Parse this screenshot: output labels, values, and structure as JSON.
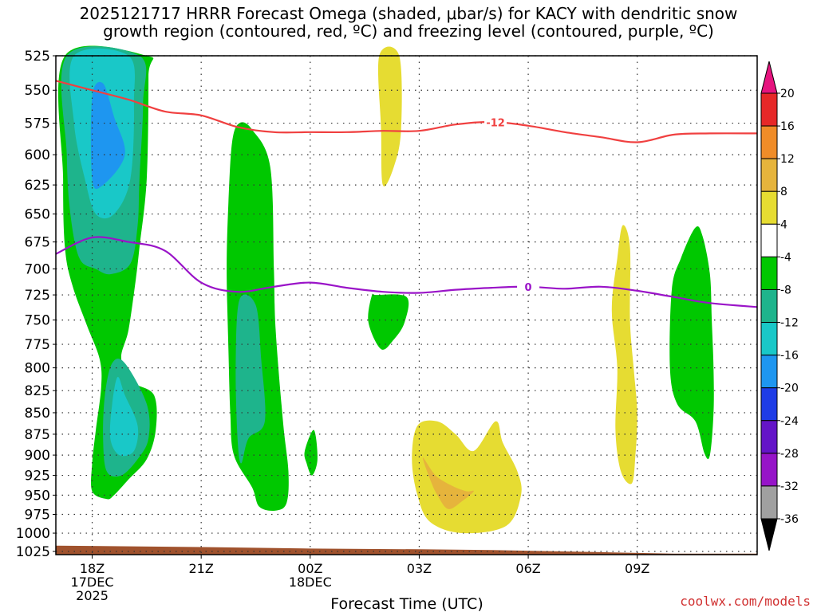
{
  "title_line1": "2025121717 HRRR Forecast Omega (shaded, μbar/s) for KACY with dendritic snow",
  "title_line2": "growth region (contoured, red, ºC) and freezing level (contoured, purple, ºC)",
  "credit": "coolwx.com/models",
  "chart_data": {
    "type": "contour",
    "xlabel": "Forecast Time (UTC)",
    "x_range_hours": [
      -1,
      18.3
    ],
    "y_levels_mb": [
      525,
      550,
      575,
      600,
      625,
      650,
      675,
      700,
      725,
      750,
      775,
      800,
      825,
      850,
      875,
      900,
      925,
      950,
      975,
      1000,
      1025
    ],
    "x_ticks": [
      {
        "hour": 0,
        "lines": [
          "18Z",
          "17DEC",
          "2025"
        ]
      },
      {
        "hour": 3,
        "lines": [
          "21Z"
        ]
      },
      {
        "hour": 6,
        "lines": [
          "00Z",
          "18DEC"
        ]
      },
      {
        "hour": 9,
        "lines": [
          "03Z"
        ]
      },
      {
        "hour": 12,
        "lines": [
          "06Z"
        ]
      },
      {
        "hour": 15,
        "lines": [
          "09Z"
        ]
      }
    ],
    "colorbar": {
      "labels": [
        "20",
        "16",
        "12",
        "8",
        "4",
        "-4",
        "-8",
        "-12",
        "-16",
        "-20",
        "-24",
        "-28",
        "-32",
        "-36"
      ],
      "bins": [
        {
          "color": "#e62828"
        },
        {
          "color": "#f08c28"
        },
        {
          "color": "#e6b43c"
        },
        {
          "color": "#e6dc32"
        },
        {
          "color": "#ffffff"
        },
        {
          "color": "#00c800"
        },
        {
          "color": "#1eb48c"
        },
        {
          "color": "#19c8c8"
        },
        {
          "color": "#1e96f0"
        },
        {
          "color": "#1e3ce6"
        },
        {
          "color": "#6414c8"
        },
        {
          "color": "#9614c8"
        },
        {
          "color": "#a0a0a0"
        }
      ],
      "top_arrow_color": "#e6147f",
      "bottom_arrow_color": "#000000"
    },
    "ground_color": "#a0522d",
    "isotherms": [
      {
        "name": "dendritic -12C",
        "label": "-12",
        "label_hour": 11.1,
        "color": "#f04040",
        "points": [
          [
            -1,
            543
          ],
          [
            0,
            550
          ],
          [
            1,
            557
          ],
          [
            2,
            566
          ],
          [
            3,
            569
          ],
          [
            4,
            578
          ],
          [
            5,
            582
          ],
          [
            6,
            582
          ],
          [
            7,
            582
          ],
          [
            8,
            581
          ],
          [
            9,
            581
          ],
          [
            10,
            576
          ],
          [
            11,
            574
          ],
          [
            12,
            577
          ],
          [
            13,
            582
          ],
          [
            14,
            586
          ],
          [
            15,
            590
          ],
          [
            16,
            584
          ],
          [
            17,
            583
          ],
          [
            18.3,
            583
          ]
        ]
      },
      {
        "name": "freezing level 0C",
        "label": "0",
        "label_hour": 12,
        "color": "#9a14c8",
        "points": [
          [
            -1,
            686
          ],
          [
            0,
            671
          ],
          [
            1,
            675
          ],
          [
            2,
            683
          ],
          [
            3,
            713
          ],
          [
            4,
            722
          ],
          [
            5,
            717
          ],
          [
            6,
            713
          ],
          [
            7,
            718
          ],
          [
            8,
            722
          ],
          [
            9,
            723
          ],
          [
            10,
            720
          ],
          [
            11,
            718
          ],
          [
            12,
            717
          ],
          [
            13,
            719
          ],
          [
            14,
            717
          ],
          [
            15,
            721
          ],
          [
            16,
            727
          ],
          [
            17,
            733
          ],
          [
            18.3,
            737
          ]
        ]
      }
    ],
    "regions": [
      {
        "value_bin": 5,
        "pts": [
          [
            -0.75,
            525
          ],
          [
            1.5,
            525
          ],
          [
            1.55,
            540
          ],
          [
            1.5,
            620
          ],
          [
            1.3,
            680
          ],
          [
            1.2,
            710
          ],
          [
            1.0,
            760
          ],
          [
            0.8,
            790
          ],
          [
            1.1,
            815
          ],
          [
            1.7,
            830
          ],
          [
            1.75,
            870
          ],
          [
            1.5,
            905
          ],
          [
            1.0,
            930
          ],
          [
            0.6,
            950
          ],
          [
            0.4,
            955
          ],
          [
            0.0,
            945
          ],
          [
            0.0,
            910
          ],
          [
            0.1,
            870
          ],
          [
            0.25,
            820
          ],
          [
            0.2,
            790
          ],
          [
            -0.15,
            755
          ],
          [
            -0.55,
            715
          ],
          [
            -0.75,
            680
          ],
          [
            -0.8,
            620
          ]
        ]
      },
      {
        "value_bin": 6,
        "pts": [
          [
            -0.7,
            525
          ],
          [
            1.3,
            525
          ],
          [
            1.4,
            560
          ],
          [
            1.3,
            620
          ],
          [
            1.25,
            660
          ],
          [
            1.05,
            695
          ],
          [
            0.5,
            705
          ],
          [
            0.1,
            700
          ],
          [
            -0.35,
            690
          ],
          [
            -0.6,
            650
          ],
          [
            -0.7,
            600
          ]
        ]
      },
      {
        "value_bin": 7,
        "pts": [
          [
            -0.5,
            525
          ],
          [
            1.0,
            525
          ],
          [
            1.15,
            560
          ],
          [
            1.05,
            620
          ],
          [
            0.6,
            650
          ],
          [
            0.1,
            650
          ],
          [
            -0.2,
            620
          ],
          [
            -0.5,
            575
          ]
        ]
      },
      {
        "value_bin": 8,
        "pts": [
          [
            0.0,
            555
          ],
          [
            0.3,
            545
          ],
          [
            0.6,
            570
          ],
          [
            0.9,
            600
          ],
          [
            0.3,
            625
          ],
          [
            0.0,
            620
          ]
        ]
      },
      {
        "value_bin": 6,
        "pts": [
          [
            0.55,
            795
          ],
          [
            0.9,
            795
          ],
          [
            1.5,
            840
          ],
          [
            1.55,
            880
          ],
          [
            1.25,
            905
          ],
          [
            0.8,
            925
          ],
          [
            0.4,
            920
          ],
          [
            0.3,
            880
          ],
          [
            0.35,
            830
          ]
        ]
      },
      {
        "value_bin": 7,
        "pts": [
          [
            0.7,
            810
          ],
          [
            0.9,
            830
          ],
          [
            1.25,
            865
          ],
          [
            1.15,
            895
          ],
          [
            0.75,
            900
          ],
          [
            0.5,
            880
          ],
          [
            0.55,
            840
          ]
        ]
      },
      {
        "value_bin": 5,
        "pts": [
          [
            4.05,
            575
          ],
          [
            4.4,
            580
          ],
          [
            4.9,
            610
          ],
          [
            5.0,
            700
          ],
          [
            5.05,
            760
          ],
          [
            5.25,
            860
          ],
          [
            5.4,
            920
          ],
          [
            5.35,
            960
          ],
          [
            5.05,
            970
          ],
          [
            4.6,
            965
          ],
          [
            4.4,
            940
          ],
          [
            3.9,
            900
          ],
          [
            3.8,
            850
          ],
          [
            3.75,
            780
          ],
          [
            3.7,
            700
          ],
          [
            3.75,
            640
          ],
          [
            3.85,
            590
          ]
        ]
      },
      {
        "value_bin": 6,
        "pts": [
          [
            4.05,
            730
          ],
          [
            4.5,
            735
          ],
          [
            4.65,
            790
          ],
          [
            4.75,
            860
          ],
          [
            4.3,
            880
          ],
          [
            4.1,
            910
          ],
          [
            4.0,
            880
          ],
          [
            3.95,
            800
          ]
        ]
      },
      {
        "value_bin": 3,
        "pts": [
          [
            7.9,
            525
          ],
          [
            8.45,
            525
          ],
          [
            8.5,
            580
          ],
          [
            8.3,
            610
          ],
          [
            8.0,
            625
          ],
          [
            7.95,
            580
          ]
        ]
      },
      {
        "value_bin": 5,
        "pts": [
          [
            7.8,
            725
          ],
          [
            8.65,
            727
          ],
          [
            8.6,
            752
          ],
          [
            8.3,
            770
          ],
          [
            7.95,
            780
          ],
          [
            7.6,
            752
          ],
          [
            7.7,
            725
          ]
        ]
      },
      {
        "value_bin": 5,
        "pts": [
          [
            5.85,
            895
          ],
          [
            6.1,
            870
          ],
          [
            6.2,
            905
          ],
          [
            6.05,
            925
          ],
          [
            5.9,
            910
          ]
        ]
      },
      {
        "value_bin": 3,
        "pts": [
          [
            8.95,
            865
          ],
          [
            9.5,
            860
          ],
          [
            10.0,
            875
          ],
          [
            10.5,
            895
          ],
          [
            11.1,
            860
          ],
          [
            11.3,
            885
          ],
          [
            11.7,
            920
          ],
          [
            11.8,
            950
          ],
          [
            11.4,
            990
          ],
          [
            10.2,
            1000
          ],
          [
            9.3,
            985
          ],
          [
            8.95,
            950
          ],
          [
            8.8,
            905
          ]
        ]
      },
      {
        "value_bin": 2,
        "pts": [
          [
            9.1,
            903
          ],
          [
            9.45,
            925
          ],
          [
            9.9,
            938
          ],
          [
            10.3,
            945
          ],
          [
            10.5,
            945
          ],
          [
            10.2,
            957
          ],
          [
            9.8,
            968
          ],
          [
            9.5,
            950
          ],
          [
            9.3,
            930
          ]
        ]
      },
      {
        "value_bin": 3,
        "pts": [
          [
            14.6,
            660
          ],
          [
            14.8,
            680
          ],
          [
            14.8,
            750
          ],
          [
            14.9,
            800
          ],
          [
            15.0,
            850
          ],
          [
            14.95,
            900
          ],
          [
            14.85,
            935
          ],
          [
            14.55,
            920
          ],
          [
            14.4,
            870
          ],
          [
            14.45,
            800
          ],
          [
            14.3,
            740
          ],
          [
            14.45,
            690
          ]
        ]
      },
      {
        "value_bin": 5,
        "pts": [
          [
            16.6,
            662
          ],
          [
            16.8,
            670
          ],
          [
            17.0,
            705
          ],
          [
            17.05,
            750
          ],
          [
            17.1,
            800
          ],
          [
            17.1,
            850
          ],
          [
            17.0,
            900
          ],
          [
            16.85,
            898
          ],
          [
            16.6,
            860
          ],
          [
            16.1,
            840
          ],
          [
            15.9,
            800
          ],
          [
            15.95,
            720
          ],
          [
            16.2,
            690
          ]
        ]
      }
    ],
    "ground": [
      [
        -1,
        1017
      ],
      [
        3,
        1019
      ],
      [
        6,
        1021
      ],
      [
        9,
        1022
      ],
      [
        11,
        1023
      ],
      [
        14,
        1026
      ],
      [
        16,
        1028
      ],
      [
        18.3,
        1028
      ]
    ]
  }
}
